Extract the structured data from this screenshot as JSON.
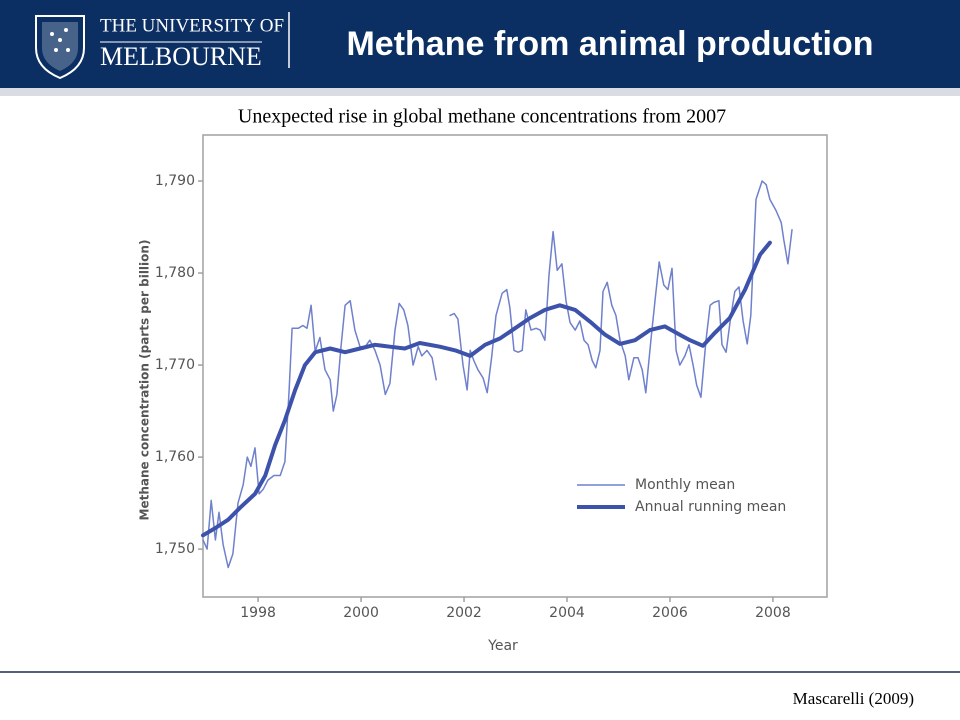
{
  "header": {
    "university_line1": "THE UNIVERSITY OF",
    "university_line2": "MELBOURNE",
    "title": "Methane from animal production"
  },
  "citation": "Mascarelli (2009)",
  "chart_data": {
    "type": "line",
    "title": "Unexpected rise in global methane concentrations from 2007",
    "x_label": "Year",
    "y_label": "Methane concentration (parts per billion)",
    "xlim": [
      1996.93,
      2009.05
    ],
    "ylim": [
      1744.8,
      1795
    ],
    "xticks": [
      1998,
      2000,
      2002,
      2004,
      2006,
      2008
    ],
    "yticks": [
      {
        "value": 1750,
        "label": "1,750"
      },
      {
        "value": 1760,
        "label": "1,760"
      },
      {
        "value": 1770,
        "label": "1,770"
      },
      {
        "value": 1780,
        "label": "1,780"
      },
      {
        "value": 1790,
        "label": "1,790"
      }
    ],
    "legend": "lower right",
    "series": [
      {
        "name": "Monthly mean",
        "color": "#6f80cc",
        "width": 1.5,
        "x": [
          1996.93,
          1997.01,
          1997.09,
          1997.17,
          1997.24,
          1997.32,
          1997.42,
          1997.51,
          1997.61,
          1997.71,
          1997.79,
          1997.86,
          1997.94,
          1998.02,
          1998.1,
          1998.19,
          1998.31,
          1998.43,
          1998.52,
          1998.6,
          1998.66,
          1998.78,
          1998.87,
          1998.95,
          1999.03,
          1999.11,
          1999.2,
          1999.3,
          1999.4,
          1999.46,
          1999.53,
          1999.61,
          1999.69,
          1999.79,
          1999.88,
          1999.98,
          2000.08,
          2000.17,
          2000.27,
          2000.37,
          2000.47,
          2000.56,
          2000.66,
          2000.74,
          2000.83,
          2000.91,
          2001.01,
          2001.11,
          2001.18,
          2001.28,
          2001.38,
          2001.46,
          2001.59,
          2001.73,
          2001.81,
          2001.88,
          2001.98,
          2002.06,
          2002.12,
          2002.19,
          2002.27,
          2002.37,
          2002.45,
          2002.54,
          2002.62,
          2002.74,
          2002.83,
          2002.89,
          2002.97,
          2003.05,
          2003.13,
          2003.2,
          2003.3,
          2003.4,
          2003.48,
          2003.57,
          2003.65,
          2003.73,
          2003.81,
          2003.9,
          2003.98,
          2004.06,
          2004.16,
          2004.25,
          2004.33,
          2004.41,
          2004.49,
          2004.56,
          2004.64,
          2004.7,
          2004.78,
          2004.87,
          2004.95,
          2005.03,
          2005.13,
          2005.2,
          2005.3,
          2005.38,
          2005.46,
          2005.53,
          2005.63,
          2005.71,
          2005.79,
          2005.88,
          2005.96,
          2006.04,
          2006.12,
          2006.19,
          2006.29,
          2006.37,
          2006.45,
          2006.52,
          2006.6,
          2006.7,
          2006.78,
          2006.85,
          2006.95,
          2007.01,
          2007.09,
          2007.17,
          2007.26,
          2007.34,
          2007.42,
          2007.5,
          2007.57,
          2007.67,
          2007.79,
          2007.87,
          2007.94,
          2008.06,
          2008.16,
          2008.21,
          2008.29,
          2008.37
        ],
        "values": [
          1751,
          1750,
          1755.3,
          1751,
          1754,
          1750.5,
          1748,
          1749.5,
          1755,
          1757,
          1760,
          1759,
          1761,
          1756,
          1756.5,
          1757.5,
          1758,
          1758,
          1759.5,
          1767,
          1774,
          1774,
          1774.3,
          1774,
          1776.5,
          1771.5,
          1773,
          1769.5,
          1768.4,
          1765,
          1766.8,
          1772,
          1776.5,
          1777,
          1773.8,
          1772,
          1772,
          1772.7,
          1771.6,
          1770,
          1766.8,
          1768,
          1773.8,
          1776.7,
          1776,
          1774.3,
          1770,
          1772,
          1771,
          1771.6,
          1770.8,
          1768.4,
          null,
          1775.4,
          1775.6,
          1775,
          1770,
          1767.3,
          1771.6,
          1770.5,
          1769.5,
          1768.6,
          1767,
          1771,
          1775.4,
          1777.8,
          1778.2,
          1776.2,
          1771.6,
          1771.4,
          1771.6,
          1776,
          1773.8,
          1774,
          1773.8,
          1772.7,
          1779.8,
          1784.5,
          1780.3,
          1781,
          1777,
          1774.6,
          1773.8,
          1774.8,
          1772.7,
          1772.2,
          1770.5,
          1769.7,
          1771.6,
          1778,
          1779,
          1776.5,
          1775.4,
          1772.7,
          1771,
          1768.4,
          1770.8,
          1770.8,
          1769.5,
          1767,
          1772.7,
          1777,
          1781.2,
          1778.7,
          1778.2,
          1780.5,
          1771.6,
          1770,
          1771,
          1772.2,
          1770,
          1767.8,
          1766.5,
          1772.7,
          1776.5,
          1776.8,
          1777,
          1772.2,
          1771.4,
          1774.8,
          1778,
          1778.5,
          1774.8,
          1772.3,
          1775.4,
          1788,
          1790,
          1789.6,
          1788,
          1786.8,
          1785.5,
          1783.6,
          1781,
          1784.7
        ]
      },
      {
        "name": "Annual running mean",
        "color": "#3d52aa",
        "width": 4,
        "x": [
          1996.93,
          1997.17,
          1997.42,
          1997.65,
          1997.94,
          1998.14,
          1998.33,
          1998.52,
          1998.72,
          1998.91,
          1999.11,
          1999.4,
          1999.69,
          1999.98,
          2000.27,
          2000.56,
          2000.85,
          2001.14,
          2001.53,
          2001.83,
          2002.12,
          2002.41,
          2002.7,
          2002.99,
          2003.28,
          2003.57,
          2003.86,
          2004.16,
          2004.45,
          2004.74,
          2005.03,
          2005.32,
          2005.61,
          2005.9,
          2006.19,
          2006.39,
          2006.64,
          2006.87,
          2007.16,
          2007.46,
          2007.75,
          2007.94
        ],
        "values": [
          1751.5,
          1752.3,
          1753.2,
          1754.5,
          1756,
          1758,
          1761.3,
          1764,
          1767.3,
          1770,
          1771.4,
          1771.8,
          1771.4,
          1771.8,
          1772.2,
          1772,
          1771.8,
          1772.4,
          1772,
          1771.6,
          1771,
          1772.2,
          1772.9,
          1774,
          1775.1,
          1776,
          1776.5,
          1776,
          1774.7,
          1773.3,
          1772.3,
          1772.7,
          1773.8,
          1774.2,
          1773.3,
          1772.7,
          1772.1,
          1773.5,
          1775.1,
          1778.2,
          1782,
          1783.3
        ]
      }
    ]
  }
}
